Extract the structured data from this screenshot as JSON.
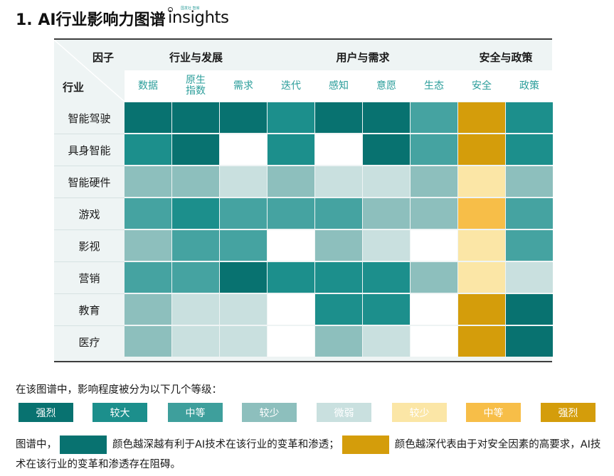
{
  "title": "1. AI行业影响力图谱",
  "logo": {
    "small_text": "国发社 智库",
    "word": "insights"
  },
  "chart_data": {
    "type": "heatmap",
    "corner_labels": {
      "factor": "因子",
      "industry": "行业"
    },
    "groups": [
      {
        "label": "行业与发展",
        "columns": [
          "数据",
          "原生指数",
          "需求"
        ]
      },
      {
        "label": "用户与需求",
        "columns": [
          "迭代",
          "感知",
          "意愿",
          "生态"
        ]
      },
      {
        "label": "安全与政策",
        "columns": [
          "安全",
          "政策"
        ]
      }
    ],
    "columns": [
      "数据",
      "原生\n指数",
      "需求",
      "迭代",
      "感知",
      "意愿",
      "生态",
      "安全",
      "政策"
    ],
    "rows": [
      "智能驾驶",
      "具身智能",
      "智能硬件",
      "游戏",
      "影视",
      "营销",
      "教育",
      "医疗"
    ],
    "scale_note": "teal levels: 0 none, 1 微弱, 2 较少, 3 中等, 4 较大, 5 强烈 (first 7 columns); gold levels: 0 none, 1 微弱, 2 较少, 3 中等, 4 强烈 (安全 column); 政策 uses teal levels",
    "values": [
      [
        5,
        5,
        5,
        4,
        5,
        5,
        3,
        4,
        4
      ],
      [
        4,
        5,
        0,
        4,
        0,
        5,
        3,
        4,
        4
      ],
      [
        2,
        2,
        1,
        2,
        1,
        1,
        2,
        2,
        2
      ],
      [
        3,
        4,
        3,
        3,
        3,
        2,
        2,
        3,
        3
      ],
      [
        2,
        3,
        3,
        0,
        2,
        1,
        0,
        2,
        3
      ],
      [
        3,
        3,
        5,
        4,
        4,
        4,
        2,
        2,
        1
      ],
      [
        2,
        1,
        1,
        0,
        4,
        4,
        0,
        4,
        5
      ],
      [
        2,
        1,
        1,
        0,
        2,
        1,
        0,
        4,
        5
      ]
    ],
    "color_scale": {
      "teal": [
        "#ffffff",
        "#c9e0df",
        "#8dbfbd",
        "#45a3a1",
        "#1c8f8c",
        "#087270"
      ],
      "gold": [
        "#ffffff",
        "#fbe6a6",
        "#fbe6a6",
        "#f7be48",
        "#d49d0b"
      ]
    }
  },
  "caption": "在该图谱中，影响程度被分为以下几个等级：",
  "legend": [
    {
      "label": "强烈",
      "color": "#087270"
    },
    {
      "label": "较大",
      "color": "#1c8f8c"
    },
    {
      "label": "中等",
      "color": "#3e9f9c"
    },
    {
      "label": "较少",
      "color": "#8dbfbd"
    },
    {
      "label": "微弱",
      "color": "#c9e0df"
    },
    {
      "label": "较少",
      "color": "#fbe6a6"
    },
    {
      "label": "中等",
      "color": "#f7be48"
    },
    {
      "label": "强烈",
      "color": "#d49d0b"
    }
  ],
  "note": {
    "prefix": "图谱中，",
    "teal_text": "颜色越深越有利于AI技术在该行业的变革和渗透；",
    "gold_text": "颜色越深代表由于对安全因素的高要求，AI技术在该行业的变革和渗透存在阻碍。",
    "teal_color": "#087270",
    "gold_color": "#d49d0b"
  }
}
